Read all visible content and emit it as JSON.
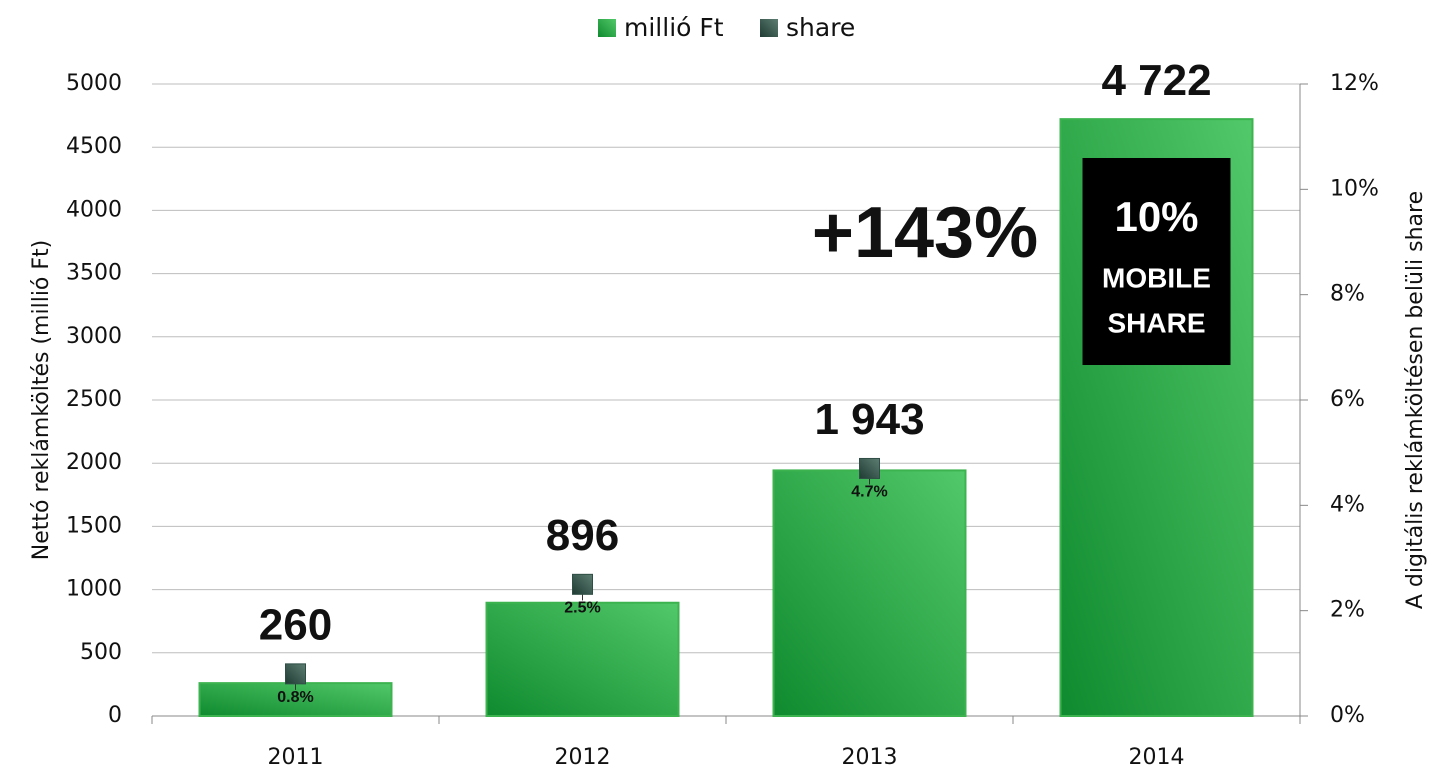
{
  "chart_data": {
    "type": "bar",
    "categories": [
      "2011",
      "2012",
      "2013",
      "2014"
    ],
    "series": [
      {
        "name": "millió Ft",
        "color": "#3cb34f",
        "values": [
          260,
          896,
          1943,
          4722
        ],
        "value_labels": [
          "260",
          "896",
          "1 943",
          "4 722"
        ]
      },
      {
        "name": "share",
        "color": "#2f4f46",
        "axis": "y2",
        "values": [
          0.8,
          2.5,
          4.7,
          10
        ],
        "value_labels": [
          "0.8%",
          "2.5%",
          "4.7%",
          "10%"
        ]
      }
    ],
    "ylabel": "Nettó reklámköltés (millió Ft)",
    "y2label": "A digitális reklámköltésen  belüli share",
    "ylim": [
      0,
      5000
    ],
    "yticks": [
      0,
      500,
      1000,
      1500,
      2000,
      2500,
      3000,
      3500,
      4000,
      4500,
      5000
    ],
    "y2lim": [
      0,
      12
    ],
    "y2ticks": [
      {
        "value": 0,
        "label": "0%"
      },
      {
        "value": 2,
        "label": "2%"
      },
      {
        "value": 4,
        "label": "4%"
      },
      {
        "value": 6,
        "label": "6%"
      },
      {
        "value": 8,
        "label": "8%"
      },
      {
        "value": 10,
        "label": "10%"
      },
      {
        "value": 12,
        "label": "12%"
      }
    ],
    "grid": true,
    "legend": "top",
    "annotations": [
      "+143%"
    ],
    "box_text": [
      "MOBILE",
      "SHARE"
    ]
  }
}
